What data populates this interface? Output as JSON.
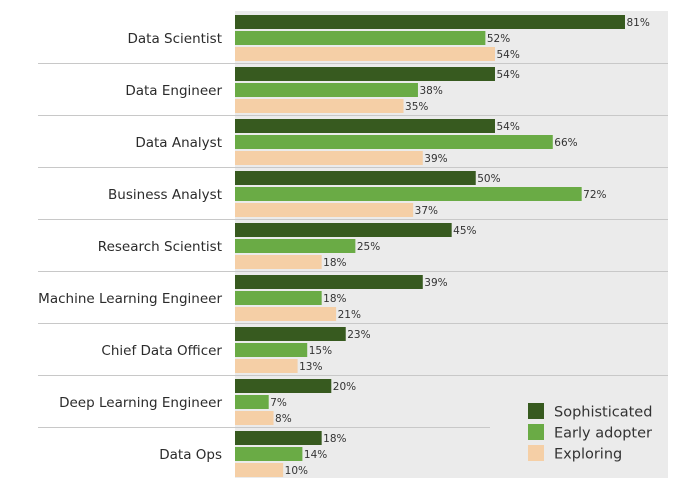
{
  "chart_data": {
    "type": "bar",
    "orientation": "horizontal",
    "title": "",
    "xlabel": "",
    "ylabel": "",
    "xlim": [
      0,
      100
    ],
    "grid": false,
    "legend_position": "bottom-right",
    "categories": [
      "Data Scientist",
      "Data Engineer",
      "Data Analyst",
      "Business Analyst",
      "Research Scientist",
      "Machine Learning Engineer",
      "Chief Data Officer",
      "Deep Learning Engineer",
      "Data Ops"
    ],
    "series": [
      {
        "name": "Sophisticated",
        "color": "#375a1f",
        "values": [
          81,
          54,
          54,
          50,
          45,
          39,
          23,
          20,
          18
        ]
      },
      {
        "name": "Early adopter",
        "color": "#6aab45",
        "values": [
          52,
          38,
          66,
          72,
          25,
          18,
          15,
          7,
          14
        ]
      },
      {
        "name": "Exploring",
        "color": "#f5cfa6",
        "values": [
          54,
          35,
          39,
          37,
          18,
          21,
          13,
          8,
          10
        ]
      }
    ],
    "value_suffix": "%"
  },
  "colors": {
    "plot_background": "#ebebeb",
    "separator": "#c8c8c8"
  }
}
